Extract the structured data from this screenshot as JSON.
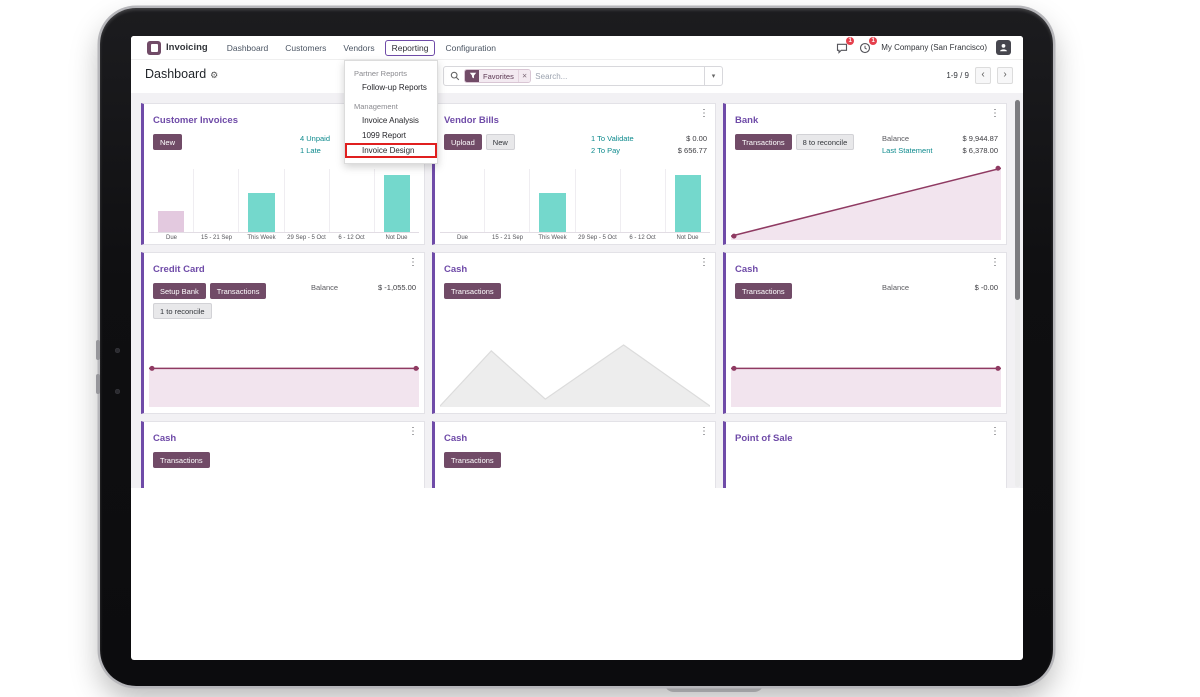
{
  "colors": {
    "primary_button": "#714B67",
    "card_title": "#6f4ba8",
    "link_teal": "#0d8a8d",
    "bar_teal": "#74d8cc",
    "bar_purple": "#e3c9df",
    "area_pink": "#f2e4ee",
    "line_maroon": "#8f3a62",
    "badge_red": "#e5404d",
    "annotation_red": "#e01f1f"
  },
  "icons": {
    "kebab": "⋮",
    "gear": "⚙",
    "close": "✕",
    "caret_down": "▾",
    "chevron_left": "‹",
    "chevron_right": "›"
  },
  "topbar": {
    "app_name": "Invoicing",
    "menu_items": [
      "Dashboard",
      "Customers",
      "Vendors",
      "Reporting",
      "Configuration"
    ],
    "active_menu": "Reporting",
    "messages_badge": "1",
    "activities_badge": "1",
    "company": "My Company (San Francisco)"
  },
  "control_panel": {
    "title": "Dashboard",
    "search_facet": "Favorites",
    "search_placeholder": "Search...",
    "pager_text": "1-9 / 9"
  },
  "reporting_menu": {
    "groups": [
      {
        "header": "Partner Reports",
        "items": [
          {
            "label": "Follow-up Reports"
          }
        ]
      },
      {
        "header": "Management",
        "items": [
          {
            "label": "Invoice Analysis"
          },
          {
            "label": "1099 Report"
          },
          {
            "label": "Invoice Design",
            "highlighted": true
          }
        ]
      }
    ]
  },
  "cards": [
    {
      "title": "Customer Invoices",
      "buttons": [
        {
          "label": "New",
          "style": "primary"
        }
      ],
      "stats": [
        {
          "label": "4 Unpaid",
          "link": true,
          "value": ""
        },
        {
          "label": "1 Late",
          "link": true,
          "value": ""
        }
      ],
      "chart": {
        "type": "bar",
        "categories": [
          "Due",
          "15 - 21 Sep",
          "This Week",
          "29 Sep - 5 Oct",
          "6 - 12 Oct",
          "Not Due"
        ],
        "values": [
          33,
          0,
          62,
          0,
          0,
          90
        ],
        "bar_colors": [
          "#e3c9df",
          "",
          "#74d8cc",
          "",
          "",
          "#74d8cc"
        ]
      }
    },
    {
      "title": "Vendor Bills",
      "buttons": [
        {
          "label": "Upload",
          "style": "primary"
        },
        {
          "label": "New",
          "style": "secondary"
        }
      ],
      "stats": [
        {
          "label": "1 To Validate",
          "link": true,
          "value": "$ 0.00"
        },
        {
          "label": "2 To Pay",
          "link": true,
          "value": "$ 656.77"
        }
      ],
      "chart": {
        "type": "bar",
        "categories": [
          "Due",
          "15 - 21 Sep",
          "This Week",
          "29 Sep - 5 Oct",
          "6 - 12 Oct",
          "Not Due"
        ],
        "values": [
          0,
          0,
          62,
          0,
          0,
          90
        ],
        "bar_colors": [
          "",
          "",
          "#74d8cc",
          "",
          "",
          "#74d8cc"
        ]
      }
    },
    {
      "title": "Bank",
      "buttons": [
        {
          "label": "Transactions",
          "style": "primary"
        },
        {
          "label": "8 to reconcile",
          "style": "secondary"
        }
      ],
      "stats": [
        {
          "label": "Balance",
          "value": "$ 9,944.87"
        },
        {
          "label": "Last Statement",
          "link": true,
          "value": "$ 6,378.00"
        }
      ],
      "chart": {
        "type": "line",
        "points": [
          [
            0,
            95
          ],
          [
            100,
            8
          ]
        ],
        "fill": "#f2e4ee",
        "stroke": "#8f3a62",
        "dots": true
      }
    },
    {
      "title": "Credit Card",
      "buttons": [
        {
          "label": "Setup Bank",
          "style": "primary"
        },
        {
          "label": "Transactions",
          "style": "primary"
        },
        {
          "label": "1 to reconcile",
          "style": "secondary"
        }
      ],
      "stats": [
        {
          "label": "Balance",
          "value": "$ -1,055.00"
        }
      ],
      "chart": {
        "type": "line",
        "points": [
          [
            0,
            8
          ],
          [
            100,
            8
          ]
        ],
        "fill": "#f2e4ee",
        "stroke": "#8f3a62",
        "dots": true
      }
    },
    {
      "title": "Cash",
      "buttons": [
        {
          "label": "Transactions",
          "style": "primary"
        }
      ],
      "stats": [],
      "chart": {
        "type": "line",
        "points": [
          [
            0,
            100
          ],
          [
            19,
            15
          ],
          [
            39,
            88
          ],
          [
            68,
            6
          ],
          [
            100,
            100
          ]
        ],
        "fill": "#ededed",
        "stroke": "#dcdcdc",
        "dots": false
      }
    },
    {
      "title": "Cash",
      "buttons": [
        {
          "label": "Transactions",
          "style": "primary"
        }
      ],
      "stats": [
        {
          "label": "Balance",
          "value": "$ -0.00"
        }
      ],
      "chart": {
        "type": "line",
        "points": [
          [
            0,
            8
          ],
          [
            100,
            8
          ]
        ],
        "fill": "#f2e4ee",
        "stroke": "#8f3a62",
        "dots": true
      }
    },
    {
      "title": "Cash",
      "buttons": [
        {
          "label": "Transactions",
          "style": "primary"
        }
      ],
      "stats": [],
      "chart": null
    },
    {
      "title": "Cash",
      "buttons": [
        {
          "label": "Transactions",
          "style": "primary"
        }
      ],
      "stats": [],
      "chart": null
    },
    {
      "title": "Point of Sale",
      "buttons": [],
      "stats": [],
      "chart": null
    }
  ]
}
